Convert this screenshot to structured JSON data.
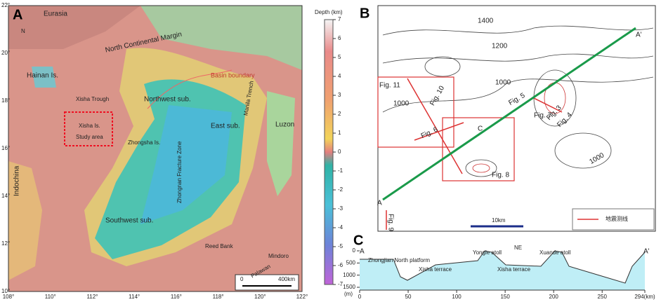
{
  "panel_a": {
    "label": "A",
    "places": [
      "Eurasia",
      "North Continental Margin",
      "Hainan Is.",
      "Basin boundary",
      "Xisha Trough",
      "Northwest sub.",
      "Xisha Is.",
      "Study area",
      "Zhongsha Is.",
      "East sub.",
      "Luzon",
      "Manila Trench",
      "Zhongnan Fracture Zone",
      "Indochina",
      "Southwest sub.",
      "Reed Bank",
      "Mindoro",
      "Palawan"
    ],
    "north": "N",
    "lon_ticks": [
      "108°",
      "110°",
      "112°",
      "114°",
      "116°",
      "118°",
      "120°",
      "122°"
    ],
    "lat_ticks": [
      "22°",
      "20°",
      "18°",
      "16°",
      "14°",
      "12°",
      "10°"
    ],
    "scale": {
      "start": "0",
      "end": "400km"
    },
    "colorbar": {
      "title": "Depth (km)",
      "ticks": [
        7,
        6,
        5,
        4,
        3,
        2,
        1,
        0,
        -1,
        -2,
        -3,
        -4,
        -5,
        -6,
        -7
      ]
    }
  },
  "panel_b": {
    "label": "B",
    "contours": [
      "1400",
      "1200",
      "1000",
      "1000",
      "1000"
    ],
    "figures": [
      "Fig. 11",
      "Fig. 10",
      "Fig. 6",
      "Fig. 5",
      "Fig. 3",
      "Fig. 4",
      "Fig. 7",
      "Fig. 8",
      "Fig. 9"
    ],
    "profile_start": "A",
    "profile_end": "A'",
    "point": "C",
    "scale": "10km",
    "legend": "地震测线"
  },
  "panel_c": {
    "label": "C",
    "start": "A",
    "end": "A'",
    "features": [
      "Zhongjian North platform",
      "Yongle atoll",
      "NE",
      "Xuande atoll",
      "Xisha terrace",
      "Xisha terrace"
    ],
    "y_unit": "(m)",
    "xticks": [
      0,
      50,
      100,
      150,
      200,
      250,
      {
        "value": 294,
        "label": "294(km)"
      }
    ],
    "yticks": [
      0,
      500,
      1000,
      1500
    ]
  }
}
